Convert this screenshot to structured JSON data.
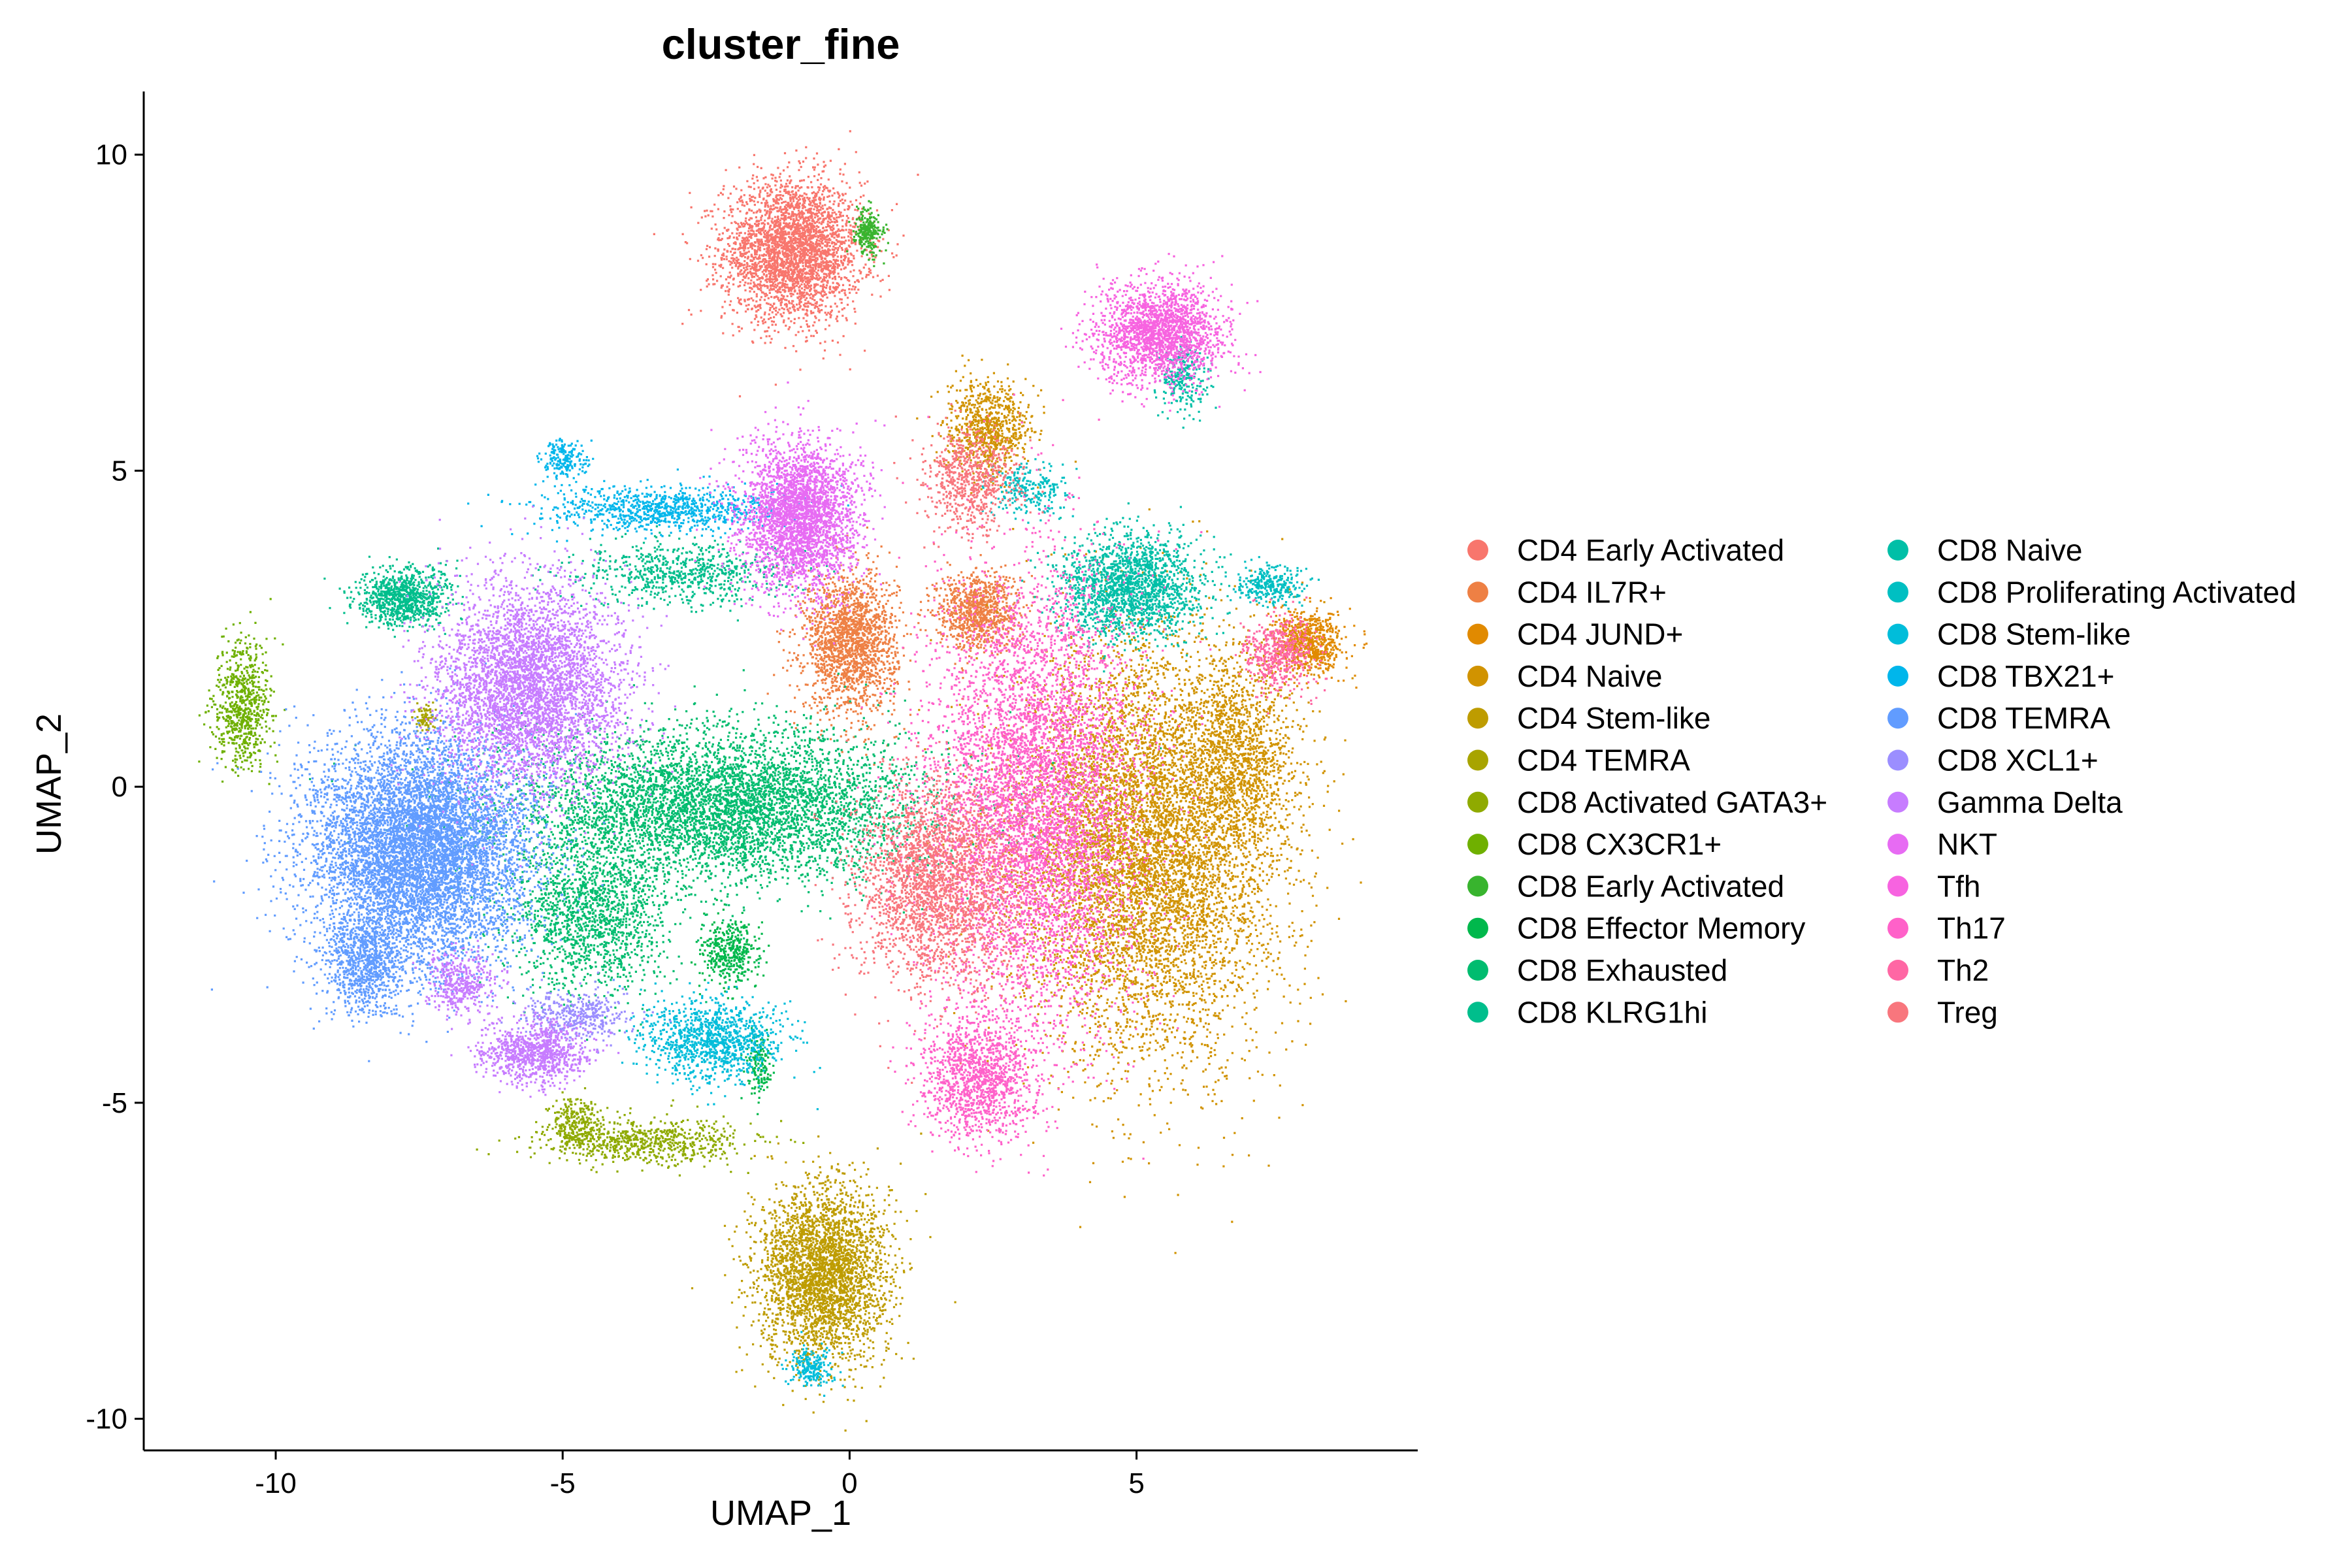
{
  "chart_data": {
    "type": "scatter",
    "title": "cluster_fine",
    "xlabel": "UMAP_1",
    "ylabel": "UMAP_2",
    "xlim": [
      -12.3,
      9.9
    ],
    "ylim": [
      -10.5,
      11.0
    ],
    "x_ticks": [
      -10,
      -5,
      0,
      5
    ],
    "y_ticks": [
      -10,
      -5,
      0,
      5,
      10
    ],
    "grid": false,
    "legend_position": "right",
    "legend_columns": 2,
    "series": [
      {
        "name": "CD4 Early Activated",
        "color": "#F8766D",
        "clusters": [
          [
            -1.0,
            8.5,
            1.2,
            1.1,
            3200
          ]
        ]
      },
      {
        "name": "CD4 IL7R+",
        "color": "#EE8044",
        "clusters": [
          [
            0.0,
            2.3,
            0.8,
            1.1,
            1800
          ],
          [
            2.2,
            2.8,
            0.7,
            0.6,
            900
          ]
        ]
      },
      {
        "name": "CD4 JUND+",
        "color": "#E18A00",
        "clusters": [
          [
            8.0,
            2.3,
            0.6,
            0.5,
            700
          ]
        ]
      },
      {
        "name": "CD4 Naive",
        "color": "#D19300",
        "clusters": [
          [
            5.2,
            -1.0,
            2.2,
            3.2,
            7000
          ],
          [
            2.4,
            5.7,
            0.7,
            0.7,
            800
          ],
          [
            6.8,
            0.5,
            1.0,
            1.6,
            1200
          ]
        ]
      },
      {
        "name": "CD4 Stem-like",
        "color": "#BE9C00",
        "clusters": [
          [
            -0.5,
            -7.7,
            1.1,
            1.4,
            3200
          ]
        ]
      },
      {
        "name": "CD4 TEMRA",
        "color": "#A8A400",
        "clusters": [
          [
            -7.4,
            1.1,
            0.2,
            0.2,
            80
          ]
        ]
      },
      {
        "name": "CD8 Activated GATA3+",
        "color": "#8FAA00",
        "clusters": [
          [
            -3.6,
            -5.6,
            1.8,
            0.35,
            700
          ],
          [
            -4.8,
            -5.3,
            0.4,
            0.4,
            250
          ]
        ]
      },
      {
        "name": "CD8 CX3CR1+",
        "color": "#6FB000",
        "clusters": [
          [
            -10.6,
            1.3,
            0.5,
            1.0,
            700
          ]
        ]
      },
      {
        "name": "CD8 Early Activated",
        "color": "#38B42E",
        "clusters": [
          [
            0.3,
            8.8,
            0.25,
            0.35,
            250
          ]
        ]
      },
      {
        "name": "CD8 Effector Memory",
        "color": "#00B84C",
        "clusters": [
          [
            -2.1,
            -2.6,
            0.5,
            0.5,
            400
          ],
          [
            -1.6,
            -4.4,
            0.2,
            0.5,
            150
          ]
        ]
      },
      {
        "name": "CD8 Exhausted",
        "color": "#00BC6F",
        "clusters": [
          [
            -2.2,
            -0.3,
            3.5,
            1.2,
            5200
          ],
          [
            -4.5,
            -2.0,
            1.4,
            1.2,
            1500
          ]
        ]
      },
      {
        "name": "CD8 KLRG1hi",
        "color": "#00BE8C",
        "clusters": [
          [
            -7.8,
            3.0,
            0.8,
            0.45,
            900
          ],
          [
            -2.9,
            3.4,
            1.8,
            0.5,
            700
          ]
        ]
      },
      {
        "name": "CD8 Naive",
        "color": "#00BFA7",
        "clusters": [
          [
            4.9,
            3.2,
            1.2,
            0.8,
            1800
          ],
          [
            5.8,
            6.5,
            0.4,
            0.5,
            250
          ]
        ]
      },
      {
        "name": "CD8 Proliferating Activated",
        "color": "#00BFC2",
        "clusters": [
          [
            7.3,
            3.2,
            0.6,
            0.3,
            300
          ],
          [
            3.1,
            4.7,
            0.7,
            0.4,
            250
          ]
        ]
      },
      {
        "name": "CD8 Stem-like",
        "color": "#00BDDA",
        "clusters": [
          [
            -2.4,
            -4.0,
            1.2,
            0.6,
            1100
          ],
          [
            -0.7,
            -9.2,
            0.4,
            0.3,
            200
          ]
        ]
      },
      {
        "name": "CD8 TBX21+",
        "color": "#00B6EB",
        "clusters": [
          [
            -3.3,
            4.4,
            2.0,
            0.35,
            900
          ],
          [
            -5.0,
            5.2,
            0.4,
            0.3,
            200
          ]
        ]
      },
      {
        "name": "CD8 TEMRA",
        "color": "#619CFF",
        "clusters": [
          [
            -7.5,
            -1.0,
            1.9,
            1.8,
            7500
          ],
          [
            -8.5,
            -2.8,
            0.7,
            0.8,
            800
          ]
        ]
      },
      {
        "name": "CD8 XCL1+",
        "color": "#9B8EFF",
        "clusters": [
          [
            -4.8,
            -3.6,
            0.9,
            0.4,
            400
          ]
        ]
      },
      {
        "name": "Gamma Delta",
        "color": "#C77CFF",
        "clusters": [
          [
            -5.6,
            1.6,
            1.6,
            1.6,
            4200
          ],
          [
            -5.5,
            -4.2,
            0.9,
            0.5,
            900
          ],
          [
            -6.8,
            -3.1,
            0.6,
            0.5,
            400
          ]
        ]
      },
      {
        "name": "NKT",
        "color": "#E76BF3",
        "clusters": [
          [
            -0.9,
            4.3,
            1.0,
            1.2,
            3000
          ]
        ]
      },
      {
        "name": "Tfh",
        "color": "#F763E0",
        "clusters": [
          [
            5.4,
            7.2,
            1.1,
            0.8,
            2000
          ]
        ]
      },
      {
        "name": "Th17",
        "color": "#FF61C9",
        "clusters": [
          [
            3.2,
            -0.2,
            1.8,
            3.5,
            6000
          ],
          [
            2.2,
            -4.6,
            1.0,
            1.0,
            1300
          ]
        ]
      },
      {
        "name": "Th2",
        "color": "#FF67A4",
        "clusters": [
          [
            7.5,
            2.1,
            0.6,
            0.6,
            500
          ]
        ]
      },
      {
        "name": "Treg",
        "color": "#F8767D",
        "clusters": [
          [
            1.5,
            -1.5,
            1.4,
            1.6,
            2500
          ],
          [
            2.1,
            4.9,
            0.8,
            0.8,
            700
          ]
        ]
      }
    ]
  }
}
